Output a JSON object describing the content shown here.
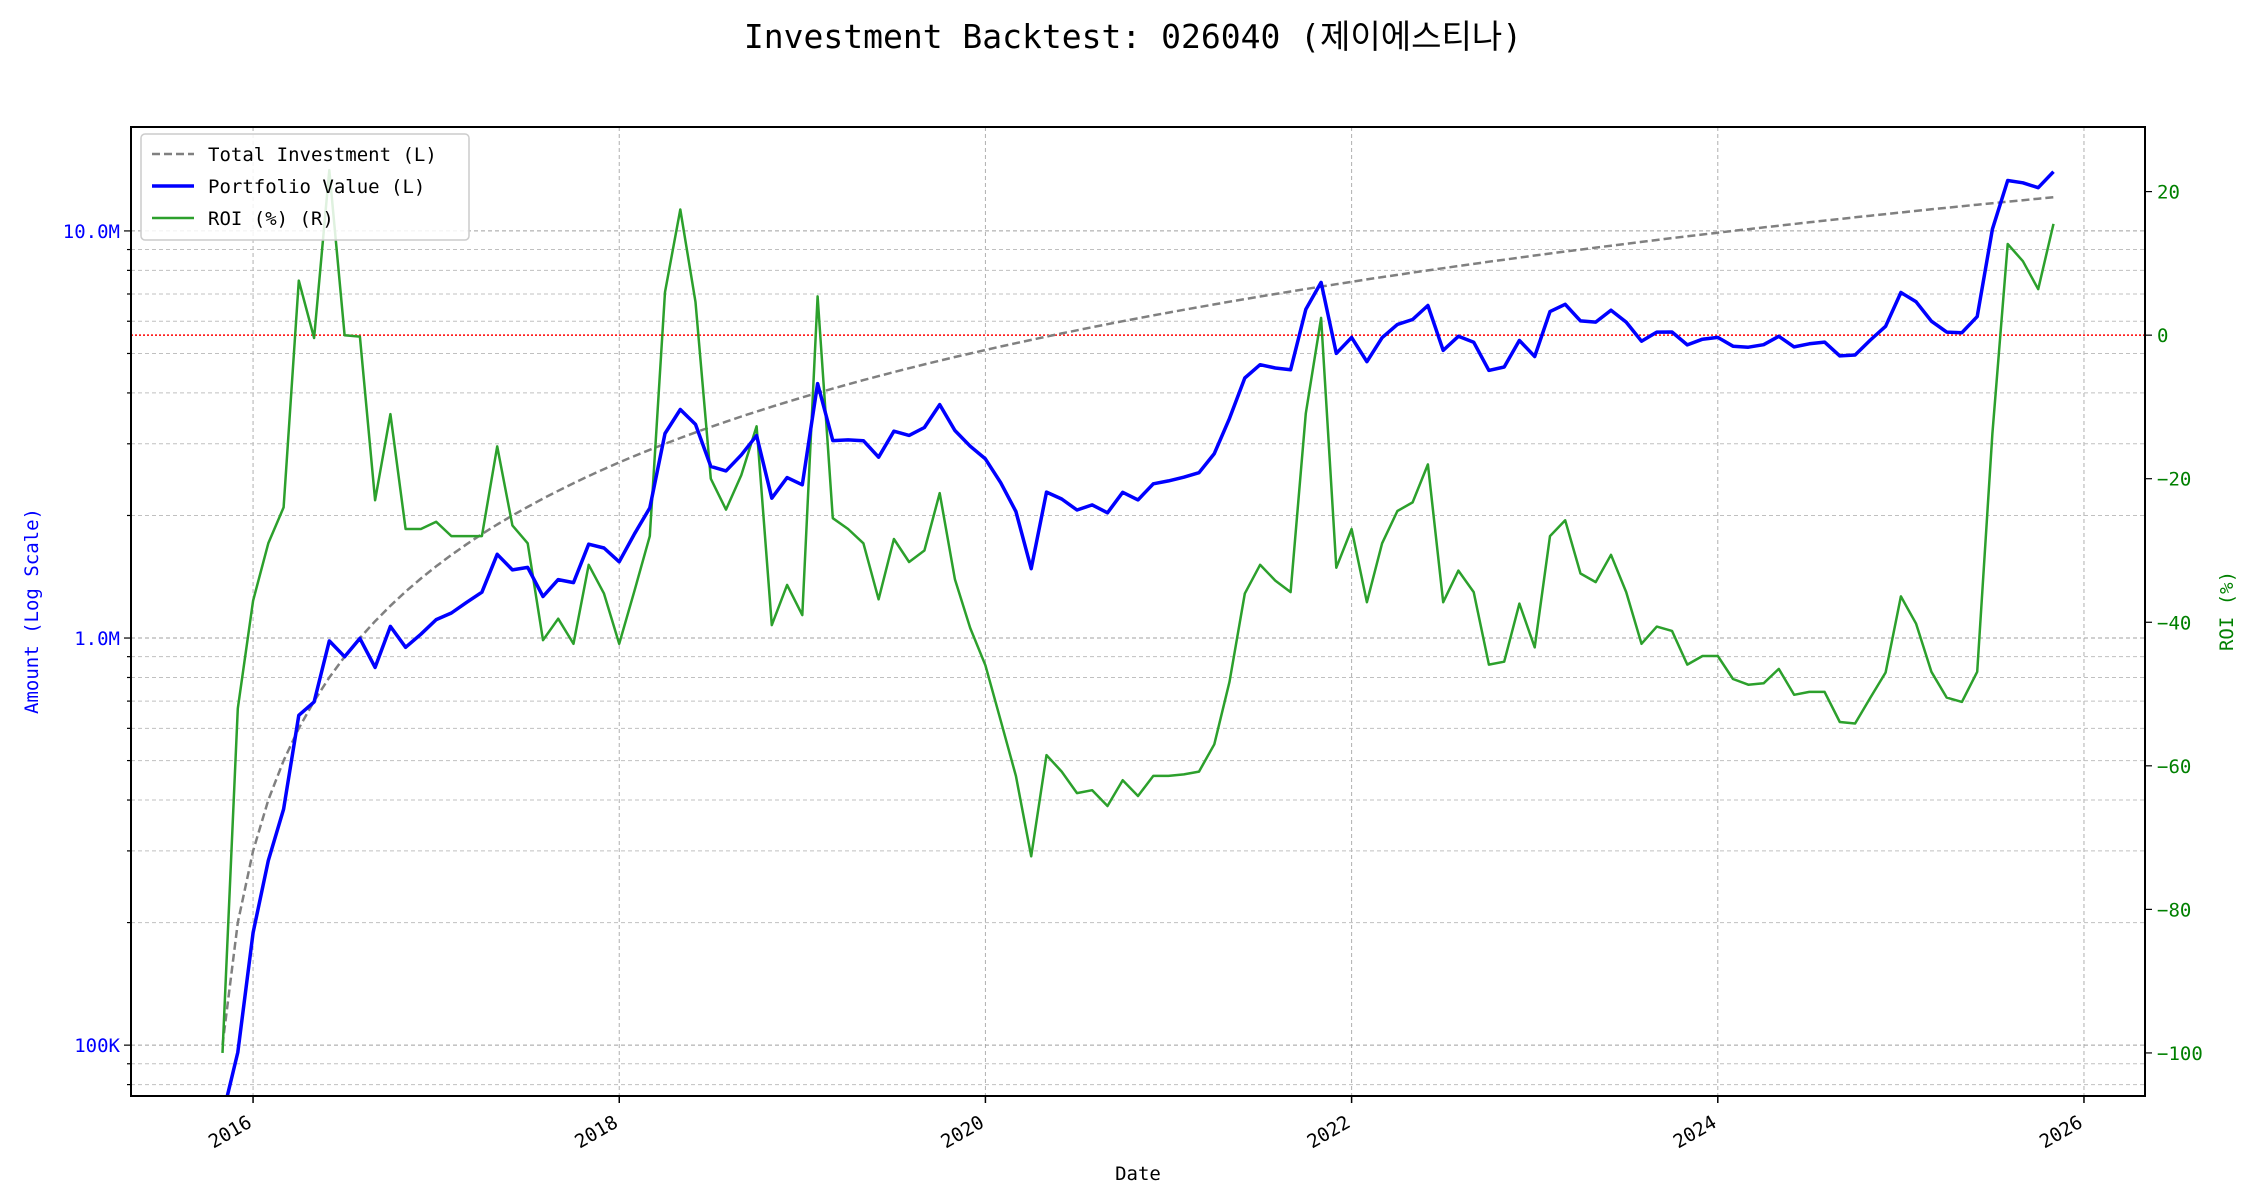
{
  "chart_data": {
    "type": "line",
    "title": "Investment Backtest: 026040 (제이에스티나)",
    "xlabel": "Date",
    "ylabel_left": "Amount (Log Scale)",
    "ylabel_right": "ROI (%)",
    "xlim": [
      "2015-05",
      "2026-05"
    ],
    "ylim_left": [
      75000,
      18000000
    ],
    "ylim_right": [
      -106,
      29
    ],
    "left_scale": "log",
    "grid": true,
    "legend_placement": "top-left",
    "x_ticks": [
      "2016",
      "2018",
      "2020",
      "2022",
      "2024",
      "2026"
    ],
    "left_ticks": [
      {
        "value": 100000,
        "label": "100K"
      },
      {
        "value": 1000000,
        "label": "1.0M"
      },
      {
        "value": 10000000,
        "label": "10.0M"
      }
    ],
    "right_ticks": [
      {
        "value": 20,
        "label": "20"
      },
      {
        "value": 0,
        "label": "0"
      },
      {
        "value": -20,
        "label": "−20"
      },
      {
        "value": -40,
        "label": "−40"
      },
      {
        "value": -60,
        "label": "−60"
      },
      {
        "value": -80,
        "label": "−80"
      },
      {
        "value": -100,
        "label": "−100"
      }
    ],
    "reference_line": {
      "axis": "right",
      "value": 0,
      "color": "#ff0000",
      "style": "dotted"
    },
    "colors": {
      "investment": "#808080",
      "portfolio": "#0000ff",
      "roi": "#2ca02c",
      "left_axis": "#0000ff",
      "right_axis": "#008000"
    },
    "x": [
      "2015-11",
      "2015-12",
      "2016-01",
      "2016-02",
      "2016-03",
      "2016-04",
      "2016-05",
      "2016-06",
      "2016-07",
      "2016-08",
      "2016-09",
      "2016-10",
      "2016-11",
      "2016-12",
      "2017-01",
      "2017-02",
      "2017-03",
      "2017-04",
      "2017-05",
      "2017-06",
      "2017-07",
      "2017-08",
      "2017-09",
      "2017-10",
      "2017-11",
      "2017-12",
      "2018-01",
      "2018-02",
      "2018-03",
      "2018-04",
      "2018-05",
      "2018-06",
      "2018-07",
      "2018-08",
      "2018-09",
      "2018-10",
      "2018-11",
      "2018-12",
      "2019-01",
      "2019-02",
      "2019-03",
      "2019-04",
      "2019-05",
      "2019-06",
      "2019-07",
      "2019-08",
      "2019-09",
      "2019-10",
      "2019-11",
      "2019-12",
      "2020-01",
      "2020-02",
      "2020-03",
      "2020-04",
      "2020-05",
      "2020-06",
      "2020-07",
      "2020-08",
      "2020-09",
      "2020-10",
      "2020-11",
      "2020-12",
      "2021-01",
      "2021-02",
      "2021-03",
      "2021-04",
      "2021-05",
      "2021-06",
      "2021-07",
      "2021-08",
      "2021-09",
      "2021-10",
      "2021-11",
      "2021-12",
      "2022-01",
      "2022-02",
      "2022-03",
      "2022-04",
      "2022-05",
      "2022-06",
      "2022-07",
      "2022-08",
      "2022-09",
      "2022-10",
      "2022-11",
      "2022-12",
      "2023-01",
      "2023-02",
      "2023-03",
      "2023-04",
      "2023-05",
      "2023-06",
      "2023-07",
      "2023-08",
      "2023-09",
      "2023-10",
      "2023-11",
      "2023-12",
      "2024-01",
      "2024-02",
      "2024-03",
      "2024-04",
      "2024-05",
      "2024-06",
      "2024-07",
      "2024-08",
      "2024-09",
      "2024-10",
      "2024-11",
      "2024-12",
      "2025-01",
      "2025-02",
      "2025-03",
      "2025-04",
      "2025-05",
      "2025-06",
      "2025-07",
      "2025-08",
      "2025-09",
      "2025-10",
      "2025-11"
    ],
    "series": [
      {
        "name": "Total Investment (L)",
        "axis": "left",
        "style": "dashed",
        "unit": "M",
        "values": [
          0.1,
          0.2,
          0.3,
          0.4,
          0.5,
          0.6,
          0.7,
          0.8,
          0.9,
          1.0,
          1.1,
          1.2,
          1.3,
          1.4,
          1.5,
          1.6,
          1.7,
          1.8,
          1.9,
          2.0,
          2.1,
          2.2,
          2.3,
          2.4,
          2.5,
          2.6,
          2.7,
          2.8,
          2.9,
          3.0,
          3.1,
          3.2,
          3.3,
          3.4,
          3.5,
          3.6,
          3.7,
          3.8,
          3.9,
          4.0,
          4.1,
          4.2,
          4.3,
          4.4,
          4.5,
          4.6,
          4.7,
          4.8,
          4.9,
          5.0,
          5.1,
          5.2,
          5.3,
          5.4,
          5.5,
          5.6,
          5.7,
          5.8,
          5.9,
          6.0,
          6.1,
          6.2,
          6.3,
          6.4,
          6.5,
          6.6,
          6.7,
          6.8,
          6.9,
          7.0,
          7.1,
          7.2,
          7.3,
          7.4,
          7.5,
          7.6,
          7.7,
          7.8,
          7.9,
          8.0,
          8.1,
          8.2,
          8.3,
          8.4,
          8.5,
          8.6,
          8.7,
          8.8,
          8.9,
          9.0,
          9.1,
          9.2,
          9.3,
          9.4,
          9.5,
          9.6,
          9.7,
          9.8,
          9.9,
          10.0,
          10.1,
          10.2,
          10.3,
          10.4,
          10.5,
          10.6,
          10.7,
          10.8,
          10.9,
          11.0,
          11.1,
          11.2,
          11.3,
          11.4,
          11.5,
          11.6,
          11.7,
          11.8,
          11.9,
          12.0,
          12.1
        ]
      },
      {
        "name": "Portfolio Value (L)",
        "axis": "left",
        "style": "solid",
        "unit": "M",
        "values": [
          0,
          0.096,
          0.189,
          0.284,
          0.38,
          0.646,
          0.697,
          0.984,
          0.9,
          0.998,
          0.847,
          1.068,
          0.949,
          1.022,
          1.11,
          1.152,
          1.224,
          1.296,
          1.606,
          1.47,
          1.491,
          1.265,
          1.392,
          1.368,
          1.7,
          1.664,
          1.539,
          1.803,
          2.088,
          3.18,
          3.643,
          3.347,
          2.64,
          2.574,
          2.818,
          3.143,
          2.205,
          2.478,
          2.379,
          4.216,
          3.055,
          3.066,
          3.053,
          2.781,
          3.222,
          3.146,
          3.29,
          3.744,
          3.234,
          2.96,
          2.754,
          2.408,
          2.046,
          1.48,
          2.283,
          2.195,
          2.063,
          2.123,
          2.03,
          2.28,
          2.184,
          2.393,
          2.432,
          2.483,
          2.548,
          2.838,
          3.464,
          4.352,
          4.692,
          4.606,
          4.558,
          6.415,
          7.475,
          5.002,
          5.475,
          4.773,
          5.467,
          5.889,
          6.059,
          6.56,
          5.087,
          5.51,
          5.329,
          4.544,
          4.633,
          5.384,
          4.916,
          6.336,
          6.604,
          6.012,
          5.97,
          6.385,
          5.971,
          5.358,
          5.643,
          5.645,
          5.248,
          5.419,
          5.475,
          5.21,
          5.181,
          5.253,
          5.511,
          5.19,
          5.282,
          5.332,
          4.933,
          4.957,
          5.396,
          5.83,
          7.06,
          6.698,
          6.0,
          5.643,
          5.624,
          6.16,
          10.097,
          13.299,
          13.126,
          12.768,
          13.976
        ]
      },
      {
        "name": "ROI (%) (R)",
        "axis": "right",
        "style": "solid",
        "unit": "%",
        "values": [
          -100,
          -52,
          -37,
          -29,
          -24,
          7.6,
          -0.4,
          23,
          0,
          -0.2,
          -23,
          -11,
          -27,
          -27,
          -26,
          -28,
          -28,
          -28,
          -15.5,
          -26.5,
          -29,
          -42.5,
          -39.5,
          -43,
          -32,
          -36,
          -43,
          -35.6,
          -28,
          6,
          17.5,
          4.6,
          -20,
          -24.3,
          -19.5,
          -12.7,
          -40.4,
          -34.8,
          -39,
          5.4,
          -25.5,
          -27,
          -29,
          -36.8,
          -28.4,
          -31.6,
          -30,
          -22,
          -34,
          -40.8,
          -46,
          -53.7,
          -61.4,
          -72.6,
          -58.5,
          -60.8,
          -63.8,
          -63.4,
          -65.6,
          -62,
          -64.2,
          -61.4,
          -61.4,
          -61.2,
          -60.8,
          -57,
          -48.3,
          -36,
          -32,
          -34.2,
          -35.8,
          -10.9,
          2.4,
          -32.4,
          -27,
          -37.2,
          -29,
          -24.5,
          -23.3,
          -18,
          -37.2,
          -32.8,
          -35.8,
          -45.9,
          -45.5,
          -37.4,
          -43.5,
          -28,
          -25.8,
          -33.2,
          -34.4,
          -30.6,
          -35.8,
          -43,
          -40.6,
          -41.2,
          -45.9,
          -44.7,
          -44.7,
          -47.9,
          -48.7,
          -48.5,
          -46.5,
          -50.1,
          -49.7,
          -49.7,
          -53.9,
          -54.1,
          -50.5,
          -47,
          -36.4,
          -40.2,
          -46.9,
          -50.5,
          -51.1,
          -46.9,
          -13.7,
          12.7,
          10.3,
          6.4,
          15.5
        ]
      }
    ]
  }
}
